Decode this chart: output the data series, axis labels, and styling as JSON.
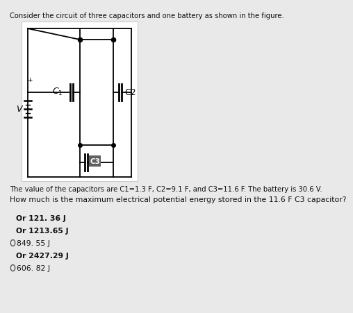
{
  "title": "Consider the circuit of three capacitors and one battery as shown in the figure.",
  "description_line": "The value of the capacitors are C1=1.3 F, C2=9.1 F, and C3=11.6 F. The battery is 30.6 V.",
  "question_normal": "How much is the maximum electrical potential energy stored in ",
  "question_bold": "the 11.6 F C3 capacitor?",
  "options": [
    {
      "text": "Or 121. 36 J",
      "type": "bold",
      "has_circle": false
    },
    {
      "text": "Or 1213.65 J",
      "type": "bold",
      "has_circle": false
    },
    {
      "text": "849. 55 J",
      "type": "normal",
      "has_circle": true
    },
    {
      "text": "Or 2427.29 J",
      "type": "bold",
      "has_circle": false
    },
    {
      "text": "606. 82 J",
      "type": "normal",
      "has_circle": true
    }
  ],
  "bg_color": "#e9e9e9",
  "circuit_bg": "#ffffff",
  "c3_box_color": "#606060",
  "c3_text_color": "#ffffff"
}
